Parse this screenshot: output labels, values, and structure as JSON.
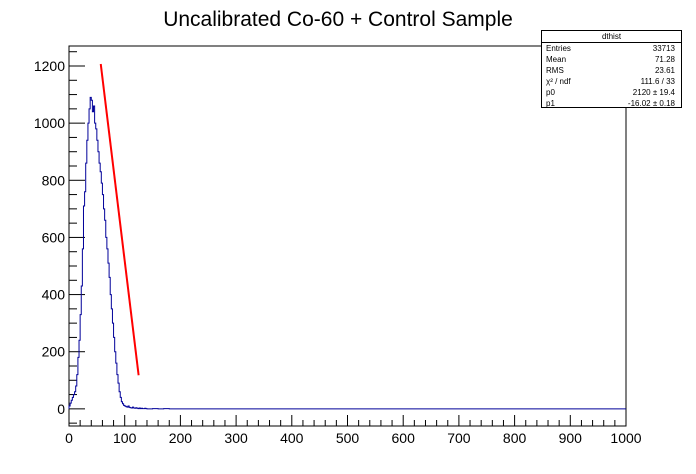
{
  "chart_data": {
    "type": "histogram",
    "title": "Uncalibrated Co-60 + Control Sample",
    "xlabel": "",
    "ylabel": "",
    "xlim": [
      0,
      1000
    ],
    "ylim": [
      -60,
      1270
    ],
    "x_ticks": [
      0,
      100,
      200,
      300,
      400,
      500,
      600,
      700,
      800,
      900,
      1000
    ],
    "y_ticks": [
      0,
      200,
      400,
      600,
      800,
      1000,
      1200
    ],
    "histogram": {
      "name": "dthist",
      "color": "#000099",
      "bins": [
        [
          0,
          10
        ],
        [
          2,
          20
        ],
        [
          4,
          30
        ],
        [
          6,
          40
        ],
        [
          8,
          50
        ],
        [
          10,
          60
        ],
        [
          12,
          80
        ],
        [
          14,
          120
        ],
        [
          16,
          180
        ],
        [
          18,
          240
        ],
        [
          20,
          330
        ],
        [
          22,
          430
        ],
        [
          24,
          560
        ],
        [
          26,
          710
        ],
        [
          28,
          760
        ],
        [
          30,
          860
        ],
        [
          32,
          940
        ],
        [
          34,
          1000
        ],
        [
          36,
          1050
        ],
        [
          38,
          1090
        ],
        [
          40,
          1080
        ],
        [
          42,
          1040
        ],
        [
          44,
          1060
        ],
        [
          46,
          1000
        ],
        [
          48,
          980
        ],
        [
          50,
          940
        ],
        [
          52,
          900
        ],
        [
          54,
          860
        ],
        [
          56,
          830
        ],
        [
          58,
          790
        ],
        [
          60,
          750
        ],
        [
          62,
          700
        ],
        [
          64,
          660
        ],
        [
          66,
          600
        ],
        [
          68,
          560
        ],
        [
          70,
          510
        ],
        [
          72,
          460
        ],
        [
          74,
          400
        ],
        [
          76,
          350
        ],
        [
          78,
          300
        ],
        [
          80,
          250
        ],
        [
          82,
          200
        ],
        [
          84,
          160
        ],
        [
          86,
          120
        ],
        [
          88,
          90
        ],
        [
          90,
          60
        ],
        [
          92,
          40
        ],
        [
          94,
          25
        ],
        [
          96,
          18
        ],
        [
          98,
          12
        ],
        [
          100,
          10
        ],
        [
          102,
          8
        ],
        [
          104,
          6
        ],
        [
          106,
          10
        ],
        [
          108,
          5
        ],
        [
          110,
          4
        ],
        [
          112,
          3
        ],
        [
          114,
          6
        ],
        [
          116,
          3
        ],
        [
          118,
          2
        ],
        [
          120,
          4
        ],
        [
          122,
          2
        ],
        [
          124,
          1
        ],
        [
          126,
          3
        ],
        [
          128,
          1
        ],
        [
          130,
          2
        ],
        [
          132,
          1
        ],
        [
          134,
          1
        ],
        [
          136,
          2
        ],
        [
          138,
          1
        ],
        [
          140,
          0
        ],
        [
          150,
          1
        ],
        [
          160,
          0
        ],
        [
          170,
          1
        ],
        [
          180,
          0
        ],
        [
          190,
          0
        ],
        [
          200,
          0
        ],
        [
          210,
          0
        ],
        [
          220,
          0
        ],
        [
          1000,
          0
        ]
      ]
    },
    "fit": {
      "color": "#ff0000",
      "x_range": [
        57,
        125
      ],
      "p0": 2120,
      "p1": -16.02
    },
    "stats_box": {
      "title": "dthist",
      "rows": [
        {
          "key": "Entries",
          "value": "33713"
        },
        {
          "key": "Mean",
          "value": "71.28"
        },
        {
          "key": "RMS",
          "value": "23.61"
        },
        {
          "key": "χ² / ndf",
          "value": "111.6 / 33"
        },
        {
          "key": "p0",
          "value": "2120  ± 19.4"
        },
        {
          "key": "p1",
          "value": "-16.02  ± 0.18"
        }
      ]
    },
    "grid": false,
    "legend": "top-right"
  }
}
